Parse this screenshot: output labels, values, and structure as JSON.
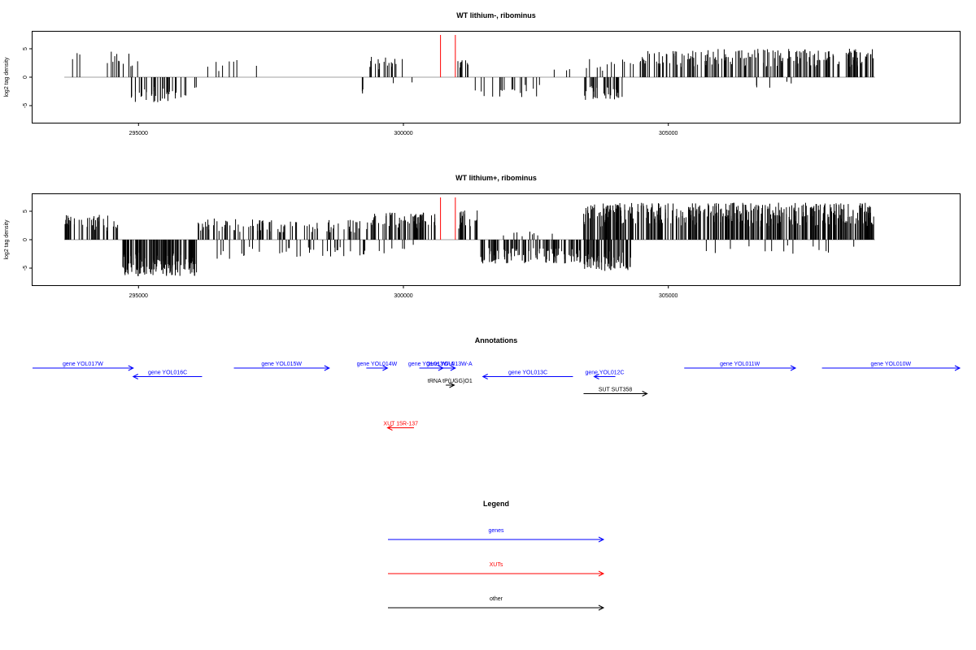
{
  "chart_data": [
    {
      "type": "bar",
      "title": "WT lithium-, ribominus",
      "ylabel": "log2 tag density",
      "xlim": [
        293000,
        310500
      ],
      "ylim": [
        -8,
        8
      ],
      "x_ticks": [
        295000,
        300000,
        305000
      ],
      "y_ticks": [
        -5,
        0,
        5
      ],
      "highlight_x": [
        300700,
        300980
      ],
      "highlight_color": "#ff0000",
      "density": "sparse",
      "regions": [
        {
          "start": 293600,
          "end": 295000,
          "sign": 1,
          "max": 4.5,
          "n": 12
        },
        {
          "start": 294800,
          "end": 295000,
          "sign": 1,
          "max": 3.0,
          "n": 3
        },
        {
          "start": 294850,
          "end": 295900,
          "sign": -1,
          "max": 4.5,
          "n": 38
        },
        {
          "start": 296000,
          "end": 296200,
          "sign": -1,
          "max": 2.0,
          "n": 2
        },
        {
          "start": 296300,
          "end": 297000,
          "sign": 1,
          "max": 3.0,
          "n": 7
        },
        {
          "start": 297200,
          "end": 297300,
          "sign": 1,
          "max": 2.7,
          "n": 1
        },
        {
          "start": 298900,
          "end": 299400,
          "sign": -1,
          "max": 3.0,
          "n": 3
        },
        {
          "start": 299300,
          "end": 300000,
          "sign": 1,
          "max": 3.8,
          "n": 18
        },
        {
          "start": 299700,
          "end": 300200,
          "sign": -1,
          "max": 1.5,
          "n": 2
        },
        {
          "start": 301000,
          "end": 301300,
          "sign": 1,
          "max": 3.0,
          "n": 10
        },
        {
          "start": 301300,
          "end": 302600,
          "sign": -1,
          "max": 3.5,
          "n": 18
        },
        {
          "start": 302600,
          "end": 303400,
          "sign": 1,
          "max": 1.5,
          "n": 3
        },
        {
          "start": 303400,
          "end": 304200,
          "sign": -1,
          "max": 4.0,
          "n": 30
        },
        {
          "start": 303400,
          "end": 304500,
          "sign": 1,
          "max": 3.2,
          "n": 14
        },
        {
          "start": 304500,
          "end": 308900,
          "sign": 1,
          "max": 5.0,
          "n": 190
        },
        {
          "start": 306500,
          "end": 308000,
          "sign": -1,
          "max": 2.0,
          "n": 5
        }
      ]
    },
    {
      "type": "bar",
      "title": "WT lithium+, ribominus",
      "ylabel": "log2 tag density",
      "xlim": [
        293000,
        310500
      ],
      "ylim": [
        -8,
        8
      ],
      "x_ticks": [
        295000,
        300000,
        305000
      ],
      "y_ticks": [
        -5,
        0,
        5
      ],
      "highlight_x": [
        300700,
        300980
      ],
      "highlight_color": "#ff0000",
      "density": "dense",
      "regions": [
        {
          "start": 293600,
          "end": 294700,
          "sign": 1,
          "max": 4.5,
          "n": 45
        },
        {
          "start": 294700,
          "end": 296100,
          "sign": -1,
          "max": 6.5,
          "n": 140
        },
        {
          "start": 296100,
          "end": 297400,
          "sign": 1,
          "max": 3.8,
          "n": 45
        },
        {
          "start": 296400,
          "end": 297500,
          "sign": -1,
          "max": 3.5,
          "n": 10
        },
        {
          "start": 297400,
          "end": 299300,
          "sign": 1,
          "max": 3.5,
          "n": 50
        },
        {
          "start": 297500,
          "end": 299300,
          "sign": -1,
          "max": 3.0,
          "n": 25
        },
        {
          "start": 299300,
          "end": 300600,
          "sign": 1,
          "max": 5.0,
          "n": 70
        },
        {
          "start": 299300,
          "end": 300200,
          "sign": -1,
          "max": 2.5,
          "n": 6
        },
        {
          "start": 301000,
          "end": 301400,
          "sign": 1,
          "max": 5.5,
          "n": 18
        },
        {
          "start": 301400,
          "end": 303400,
          "sign": -1,
          "max": 4.2,
          "n": 110
        },
        {
          "start": 301800,
          "end": 303000,
          "sign": 1,
          "max": 1.5,
          "n": 10
        },
        {
          "start": 303400,
          "end": 304300,
          "sign": -1,
          "max": 5.5,
          "n": 80
        },
        {
          "start": 303400,
          "end": 308900,
          "sign": 1,
          "max": 6.5,
          "n": 420
        },
        {
          "start": 305000,
          "end": 308500,
          "sign": -1,
          "max": 2.5,
          "n": 14
        }
      ]
    }
  ],
  "annotations": {
    "title": "Annotations",
    "features": [
      {
        "label": "gene YOL017W",
        "start": 293000,
        "end": 294900,
        "strand": "+",
        "kind": "gene",
        "row": 0
      },
      {
        "label": "gene YOL016C",
        "start": 294900,
        "end": 296200,
        "strand": "-",
        "kind": "gene",
        "row": 1
      },
      {
        "label": "gene YOL015W",
        "start": 296800,
        "end": 298600,
        "strand": "+",
        "kind": "gene",
        "row": 0
      },
      {
        "label": "gene YOL014W",
        "start": 299300,
        "end": 299700,
        "strand": "+",
        "kind": "gene",
        "row": 0
      },
      {
        "label": "gene YOL013W-A",
        "start": 300300,
        "end": 300750,
        "strand": "+",
        "kind": "gene",
        "row": 0
      },
      {
        "label": "gene YOL013W-A",
        "start": 300750,
        "end": 300980,
        "strand": "+",
        "kind": "gene",
        "row": 0
      },
      {
        "label": "gene YOL013C",
        "start": 301500,
        "end": 303200,
        "strand": "-",
        "kind": "gene",
        "row": 1
      },
      {
        "label": "gene YOL012C",
        "start": 303600,
        "end": 304000,
        "strand": "-",
        "kind": "gene",
        "row": 1
      },
      {
        "label": "gene YOL011W",
        "start": 305300,
        "end": 307400,
        "strand": "+",
        "kind": "gene",
        "row": 0
      },
      {
        "label": "gene YOL010W",
        "start": 307900,
        "end": 310500,
        "strand": "+",
        "kind": "gene",
        "row": 0
      },
      {
        "label": "tRNA tP(UGG)O1",
        "start": 300800,
        "end": 300960,
        "strand": "+",
        "kind": "other",
        "row": 2
      },
      {
        "label": "SUT SUT358",
        "start": 303400,
        "end": 304600,
        "strand": "+",
        "kind": "other",
        "row": 3
      },
      {
        "label": "XUT 15R-137",
        "start": 299700,
        "end": 300200,
        "strand": "-",
        "kind": "xut",
        "row": 7
      }
    ]
  },
  "legend": {
    "title": "Legend",
    "items": [
      {
        "label": "genes",
        "color": "#0000ff"
      },
      {
        "label": "XUTs",
        "color": "#ff0000"
      },
      {
        "label": "other",
        "color": "#000000"
      }
    ]
  },
  "colors": {
    "gene": "#0000ff",
    "xut": "#ff0000",
    "other": "#000000",
    "axis": "#000000",
    "baseline": "#a0a0a0"
  }
}
